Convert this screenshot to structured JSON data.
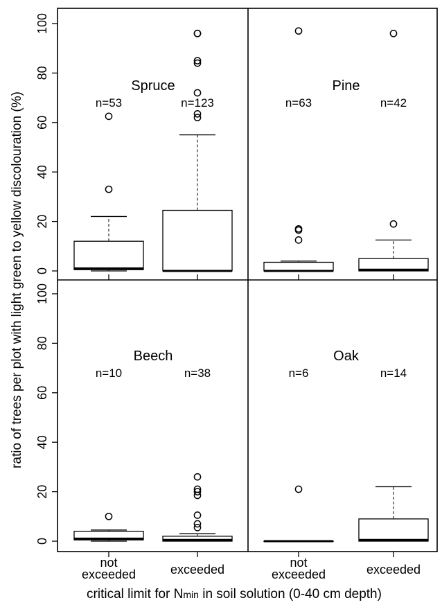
{
  "figure": {
    "ylabel": "ratio of trees per plot with light green to yellow discolouration (%)",
    "xlabel_prefix": "critical limit for N",
    "xlabel_sub": "min",
    "xlabel_suffix": " in soil solution (0-40 cm depth)",
    "ytick_labels": [
      "0",
      "20",
      "40",
      "60",
      "80",
      "100"
    ]
  },
  "chart_data": [
    {
      "type": "box",
      "title": "Spruce",
      "ylim": [
        0,
        100
      ],
      "categories": [
        "not exceeded",
        "exceeded"
      ],
      "counts": [
        "n=53",
        "n=123"
      ],
      "boxes": [
        {
          "whisker_low": 0,
          "q1": 0.5,
          "median": 1,
          "q3": 12,
          "whisker_high": 22,
          "outliers": [
            33,
            62.5
          ]
        },
        {
          "whisker_low": 0,
          "q1": 0,
          "median": 0,
          "q3": 24.5,
          "whisker_high": 55,
          "outliers": [
            62,
            63.5,
            72,
            84,
            85,
            96,
            96
          ]
        }
      ]
    },
    {
      "type": "box",
      "title": "Pine",
      "ylim": [
        0,
        100
      ],
      "categories": [
        "not exceeded",
        "exceeded"
      ],
      "counts": [
        "n=63",
        "n=42"
      ],
      "boxes": [
        {
          "whisker_low": 0,
          "q1": 0,
          "median": 0,
          "q3": 3.5,
          "whisker_high": 4,
          "outliers": [
            12.5,
            16.5,
            17,
            97
          ]
        },
        {
          "whisker_low": 0,
          "q1": 0,
          "median": 0.5,
          "q3": 5,
          "whisker_high": 12.5,
          "outliers": [
            19,
            96
          ]
        }
      ]
    },
    {
      "type": "box",
      "title": "Beech",
      "ylim": [
        0,
        100
      ],
      "categories": [
        "not exceeded",
        "exceeded"
      ],
      "counts": [
        "n=10",
        "n=38"
      ],
      "boxes": [
        {
          "whisker_low": 0,
          "q1": 0.5,
          "median": 1,
          "q3": 4,
          "whisker_high": 4.5,
          "outliers": [
            10
          ]
        },
        {
          "whisker_low": 0,
          "q1": 0,
          "median": 0.5,
          "q3": 2,
          "whisker_high": 3,
          "outliers": [
            5.5,
            7,
            10.5,
            18.5,
            20,
            21,
            26
          ]
        }
      ]
    },
    {
      "type": "box",
      "title": "Oak",
      "ylim": [
        0,
        100
      ],
      "categories": [
        "not exceeded",
        "exceeded"
      ],
      "counts": [
        "n=6",
        "n=14"
      ],
      "boxes": [
        {
          "whisker_low": 0,
          "q1": 0,
          "median": 0,
          "q3": 0,
          "whisker_high": 0,
          "outliers": [
            21
          ]
        },
        {
          "whisker_low": 0,
          "q1": 0,
          "median": 0.5,
          "q3": 9,
          "whisker_high": 22,
          "outliers": []
        }
      ]
    }
  ]
}
